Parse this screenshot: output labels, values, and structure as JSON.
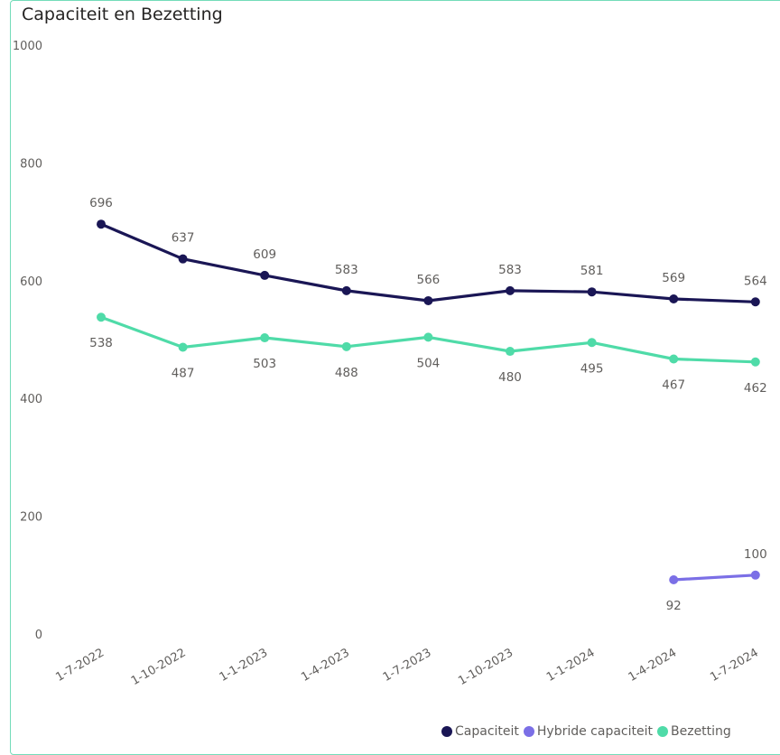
{
  "chart_data": {
    "type": "line",
    "title": "Capaciteit en Bezetting",
    "xlabel": "",
    "ylabel": "",
    "ylim": [
      0,
      1000
    ],
    "yticks": [
      0,
      200,
      400,
      600,
      800,
      1000
    ],
    "categories": [
      "1-7-2022",
      "1-10-2022",
      "1-1-2023",
      "1-4-2023",
      "1-7-2023",
      "1-10-2023",
      "1-1-2024",
      "1-4-2024",
      "1-7-2024"
    ],
    "series": [
      {
        "name": "Capaciteit",
        "color": "#1a1655",
        "values": [
          696,
          637,
          609,
          583,
          566,
          583,
          581,
          569,
          564
        ]
      },
      {
        "name": "Hybride capaciteit",
        "color": "#7b6fe6",
        "values": [
          null,
          null,
          null,
          null,
          null,
          null,
          null,
          92,
          100
        ]
      },
      {
        "name": "Bezetting",
        "color": "#4fdba8",
        "values": [
          538,
          487,
          503,
          488,
          504,
          480,
          495,
          467,
          462
        ]
      }
    ],
    "grid": false,
    "legend_position": "bottom-right"
  }
}
